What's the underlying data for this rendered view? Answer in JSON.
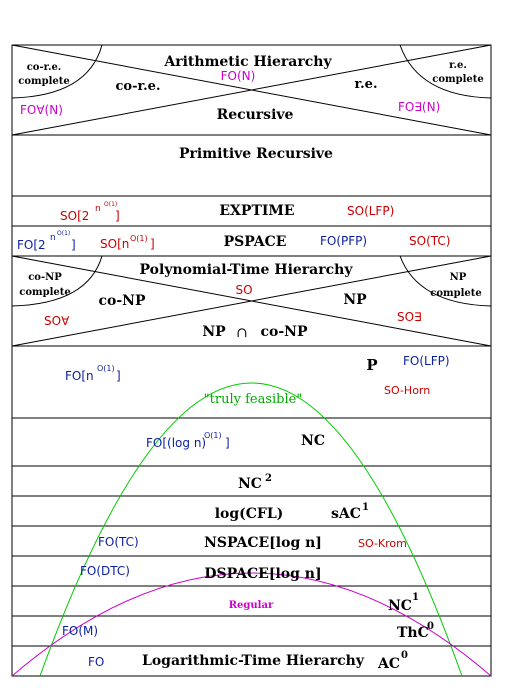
{
  "colors": {
    "black": "#000000",
    "red": "#cc0000",
    "blue": "#0a1ea0",
    "magenta": "#cc00cc",
    "green": "#00cc00"
  },
  "top": {
    "arith": "Arithmetic Hierarchy",
    "fo_n": "FO(N)",
    "co_re_complete_1": "co-r.e.",
    "co_re_complete_2": "complete",
    "co_re": "co-r.e.",
    "re": "r.e.",
    "re_complete_1": "r.e.",
    "re_complete_2": "complete",
    "fo_forall": "FO∀(N)",
    "fo_exists": "FO∃(N)",
    "recursive": "Recursive",
    "primitive": "Primitive Recursive"
  },
  "exp": {
    "so2_base": "SO[2",
    "so2_n": "n",
    "so2_exp": "O(1)",
    "so2_close": "]",
    "exptime": "EXPTIME",
    "so_lfp": "SO(LFP)"
  },
  "pspace": {
    "fo2_base": "FO[2",
    "fo2_n": "n",
    "fo2_exp": "O(1)",
    "fo2_close": "]",
    "son_base": "SO[n",
    "son_exp": "O(1)",
    "son_close": "]",
    "pspace": "PSPACE",
    "fo_pfp": "FO(PFP)",
    "so_tc": "SO(TC)"
  },
  "poly": {
    "ph": "Polynomial-Time Hierarchy",
    "so": "SO",
    "conp_complete_1": "co-NP",
    "conp_complete_2": "complete",
    "conp": "co-NP",
    "np": "NP",
    "np_complete_1": "NP",
    "np_complete_2": "complete",
    "so_forall": "SO∀",
    "so_exists": "SO∃",
    "np_left": "NP",
    "cap": "∩",
    "np_right": "co-NP"
  },
  "p": {
    "fon_base": "FO[n",
    "fon_exp": "O(1)",
    "fon_close": "]",
    "p": "P",
    "fo_lfp": "FO(LFP)",
    "so_horn": "SO-Horn",
    "truly": "\"truly feasible\""
  },
  "nc": {
    "folog_base": "FO[(log n)",
    "folog_exp": "O(1)",
    "folog_close": "]",
    "nc": "NC",
    "nc2_base": "NC",
    "nc2_exp": "2"
  },
  "lower": {
    "logcfl": "log(CFL)",
    "sac_base": "sAC",
    "sac_exp": "1",
    "fo_tc": "FO(TC)",
    "nspace": "NSPACE[log n]",
    "so_krom": "SO-Krom",
    "fo_dtc": "FO(DTC)",
    "dspace": "DSPACE[log n]",
    "regular": "Regular",
    "nc1_base": "NC",
    "nc1_exp": "1",
    "fo_m": "FO(M)",
    "thc_base": "ThC",
    "thc_exp": "0",
    "fo": "FO",
    "lth": "Logarithmic-Time Hierarchy",
    "ac_base": "AC",
    "ac_exp": "0"
  }
}
